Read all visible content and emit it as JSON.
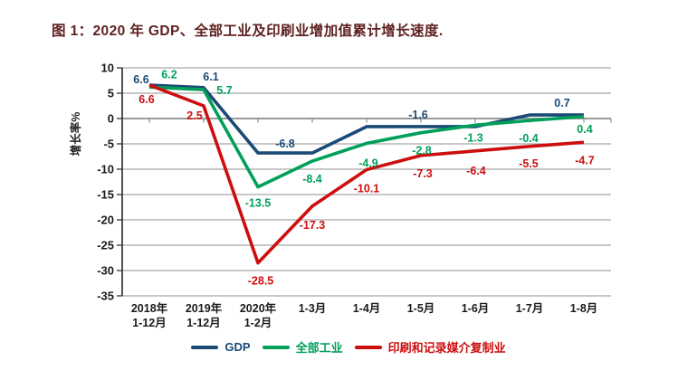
{
  "chart_data": {
    "type": "line",
    "title": "图 1：2020 年 GDP、全部工业及印刷业增加值累计增长速度.",
    "ylabel": "增长率%",
    "ylim": [
      -35,
      10
    ],
    "ytick_step": 5,
    "grid": true,
    "legend_position": "bottom",
    "categories": [
      [
        "2018年",
        "1-12月"
      ],
      [
        "2019年",
        "1-12月"
      ],
      [
        "2020年",
        "1-2月"
      ],
      [
        "1-3月"
      ],
      [
        "1-4月"
      ],
      [
        "1-5月"
      ],
      [
        "1-6月"
      ],
      [
        "1-7月"
      ],
      [
        "1-8月"
      ]
    ],
    "series": [
      {
        "name": "GDP",
        "color": "#1a4a75",
        "values": [
          6.6,
          6.1,
          -6.8,
          -6.8,
          -1.6,
          -1.6,
          -1.6,
          0.7,
          0.7
        ],
        "point_labels": [
          {
            "t": "6.6",
            "i": 0,
            "dx": -9,
            "dy": -6
          },
          {
            "t": "6.1",
            "i": 1,
            "dx": 8,
            "dy": -12
          },
          {
            "t": "-6.8",
            "i": 2.5,
            "dx": 0,
            "dy": -10
          },
          {
            "t": "-1.6",
            "i": 4.95,
            "dx": 0,
            "dy": -13
          },
          {
            "t": "0.7",
            "i": 7.6,
            "dx": 0,
            "dy": -13
          }
        ]
      },
      {
        "name": "全部工业",
        "color": "#00a05a",
        "values": [
          6.2,
          5.7,
          -13.5,
          -8.4,
          -4.9,
          -2.8,
          -1.3,
          -0.4,
          0.4
        ],
        "point_labels": [
          {
            "t": "6.2",
            "i": 0,
            "dx": 22,
            "dy": -14
          },
          {
            "t": "5.7",
            "i": 1,
            "dx": 23,
            "dy": 1
          },
          {
            "t": "-13.5",
            "i": 2,
            "dx": 0,
            "dy": 18
          },
          {
            "t": "-8.4",
            "i": 3,
            "dx": 0,
            "dy": 20
          },
          {
            "t": "-4.9",
            "i": 4,
            "dx": 2,
            "dy": 22
          },
          {
            "t": "-2.8",
            "i": 5,
            "dx": 1,
            "dy": 20
          },
          {
            "t": "-1.3",
            "i": 6,
            "dx": -2,
            "dy": 14
          },
          {
            "t": "-0.4",
            "i": 7,
            "dx": -1,
            "dy": 20
          },
          {
            "t": "0.4",
            "i": 8,
            "dx": 1,
            "dy": 14
          }
        ]
      },
      {
        "name": "印刷和记录媒介复制业",
        "color": "#cc0f0e",
        "values": [
          6.6,
          2.5,
          -28.5,
          -17.3,
          -10.1,
          -7.3,
          -6.4,
          -5.5,
          -4.7
        ],
        "point_labels": [
          {
            "t": "6.6",
            "i": 0,
            "dx": -3,
            "dy": 16
          },
          {
            "t": "2.5",
            "i": 1,
            "dx": -10,
            "dy": 11
          },
          {
            "t": "-28.5",
            "i": 2,
            "dx": 3,
            "dy": 20
          },
          {
            "t": "-17.3",
            "i": 3,
            "dx": 0,
            "dy": 21
          },
          {
            "t": "-10.1",
            "i": 4,
            "dx": 0,
            "dy": 21
          },
          {
            "t": "-7.3",
            "i": 5,
            "dx": 2,
            "dy": 20
          },
          {
            "t": "-6.4",
            "i": 6,
            "dx": 1,
            "dy": 22
          },
          {
            "t": "-5.5",
            "i": 7,
            "dx": -1,
            "dy": 19
          },
          {
            "t": "-4.7",
            "i": 8,
            "dx": 1,
            "dy": 20
          }
        ]
      }
    ],
    "colors": {
      "grid": "#a6a6a6",
      "zero_line": "#8c8c8c",
      "axis": "#333333",
      "tick_text": "#1a1a1a",
      "title_text": "#5e2120"
    }
  }
}
